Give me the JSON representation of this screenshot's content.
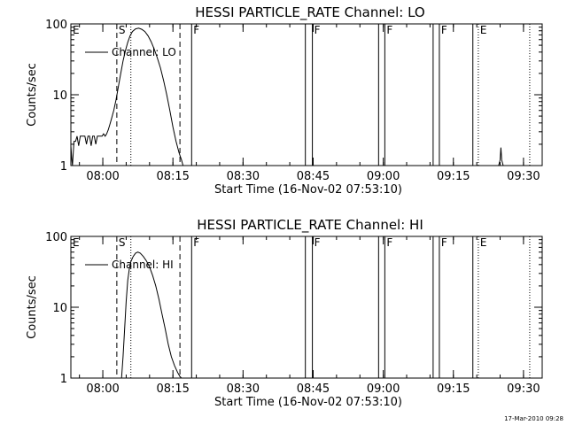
{
  "footer_timestamp": "17-Mar-2010 09:28",
  "chart_data": [
    {
      "type": "line",
      "title": "HESSI PARTICLE_RATE Channel: LO",
      "xlabel": "Start Time (16-Nov-02 07:53:10)",
      "ylabel": "Counts/sec",
      "y_scale": "log",
      "ylim": [
        1,
        100
      ],
      "y_ticks": [
        1,
        10,
        100
      ],
      "x_time_range": [
        "07:53:10",
        "09:34:00"
      ],
      "x_ticks": [
        "08:00",
        "08:15",
        "08:30",
        "08:45",
        "09:00",
        "09:15",
        "09:30"
      ],
      "legend": {
        "label": "Channel: LO",
        "position": "top-left"
      },
      "markers": [
        {
          "label": "E",
          "time": "07:53:10",
          "style": "none"
        },
        {
          "label": "S",
          "time": "08:03:00",
          "style": "dashed"
        },
        {
          "label": "",
          "time": "08:06:00",
          "style": "dotted"
        },
        {
          "label": "",
          "time": "08:16:30",
          "style": "dashed"
        },
        {
          "label": "F",
          "time": "08:19:00",
          "style": "solid"
        },
        {
          "label": "",
          "time": "08:43:20",
          "style": "solid"
        },
        {
          "label": "F",
          "time": "08:44:50",
          "style": "solid"
        },
        {
          "label": "",
          "time": "08:59:00",
          "style": "solid"
        },
        {
          "label": "F",
          "time": "09:00:20",
          "style": "solid"
        },
        {
          "label": "",
          "time": "09:10:40",
          "style": "solid"
        },
        {
          "label": "F",
          "time": "09:12:00",
          "style": "solid"
        },
        {
          "label": "",
          "time": "09:19:10",
          "style": "solid"
        },
        {
          "label": "E",
          "time": "09:20:20",
          "style": "dotted"
        },
        {
          "label": "",
          "time": "09:31:20",
          "style": "dotted"
        }
      ],
      "series": [
        {
          "x": [
            "07:53:10",
            "07:53:20",
            "07:53:30",
            "07:53:50",
            "07:54:10",
            "07:54:30",
            "07:54:50",
            "07:55:10",
            "07:55:30",
            "07:55:50",
            "07:56:10",
            "07:56:30",
            "07:56:50",
            "07:57:10",
            "07:57:30",
            "07:57:50",
            "07:58:10",
            "07:58:30",
            "07:58:50",
            "07:59:10",
            "07:59:30",
            "07:59:50",
            "08:00:10",
            "08:00:30",
            "08:00:50",
            "08:01:10",
            "08:01:30",
            "08:01:50",
            "08:02:20",
            "08:02:50",
            "08:03:20",
            "08:03:50",
            "08:04:20",
            "08:04:50",
            "08:05:20",
            "08:05:50",
            "08:06:20",
            "08:07:00",
            "08:07:40",
            "08:08:20",
            "08:09:00",
            "08:09:40",
            "08:10:20",
            "08:11:00",
            "08:11:40",
            "08:12:20",
            "08:13:00",
            "08:13:40",
            "08:14:20",
            "08:15:00",
            "08:15:40",
            "08:16:20",
            "08:16:50",
            "08:17:10",
            "08:17:20"
          ],
          "y": [
            1.9,
            1.3,
            1.0,
            2.2,
            2.2,
            2.6,
            1.9,
            2.6,
            2.6,
            2.6,
            2.6,
            2.0,
            2.6,
            2.6,
            1.9,
            2.6,
            2.6,
            2.0,
            2.6,
            2.6,
            2.6,
            2.6,
            2.8,
            2.6,
            2.8,
            3.2,
            3.8,
            4.5,
            6.0,
            8.5,
            13,
            20,
            30,
            42,
            55,
            68,
            78,
            85,
            87,
            84,
            78,
            68,
            56,
            44,
            33,
            24,
            16,
            10,
            6,
            3.5,
            2.2,
            1.5,
            1.2,
            1.0,
            1.0
          ]
        },
        {
          "x": [
            "09:24:40",
            "09:25:00",
            "09:25:10",
            "09:25:20",
            "09:25:40"
          ],
          "y": [
            1.0,
            1.2,
            1.8,
            1.2,
            1.0
          ]
        }
      ]
    },
    {
      "type": "line",
      "title": "HESSI PARTICLE_RATE Channel: HI",
      "xlabel": "Start Time (16-Nov-02 07:53:10)",
      "ylabel": "Counts/sec",
      "y_scale": "log",
      "ylim": [
        1,
        100
      ],
      "y_ticks": [
        1,
        10,
        100
      ],
      "x_time_range": [
        "07:53:10",
        "09:34:00"
      ],
      "x_ticks": [
        "08:00",
        "08:15",
        "08:30",
        "08:45",
        "09:00",
        "09:15",
        "09:30"
      ],
      "legend": {
        "label": "Channel: HI",
        "position": "top-left"
      },
      "markers": [
        {
          "label": "E",
          "time": "07:53:10",
          "style": "none"
        },
        {
          "label": "S",
          "time": "08:03:00",
          "style": "dashed"
        },
        {
          "label": "",
          "time": "08:06:00",
          "style": "dotted"
        },
        {
          "label": "",
          "time": "08:16:30",
          "style": "dashed"
        },
        {
          "label": "F",
          "time": "08:19:00",
          "style": "solid"
        },
        {
          "label": "",
          "time": "08:43:20",
          "style": "solid"
        },
        {
          "label": "F",
          "time": "08:44:50",
          "style": "solid"
        },
        {
          "label": "",
          "time": "08:59:00",
          "style": "solid"
        },
        {
          "label": "F",
          "time": "09:00:20",
          "style": "solid"
        },
        {
          "label": "",
          "time": "09:10:40",
          "style": "solid"
        },
        {
          "label": "F",
          "time": "09:12:00",
          "style": "solid"
        },
        {
          "label": "",
          "time": "09:19:10",
          "style": "solid"
        },
        {
          "label": "E",
          "time": "09:20:20",
          "style": "dotted"
        },
        {
          "label": "",
          "time": "09:31:20",
          "style": "dotted"
        }
      ],
      "series": [
        {
          "x": [
            "08:04:00",
            "08:04:20",
            "08:04:40",
            "08:05:00",
            "08:05:20",
            "08:05:40",
            "08:06:00",
            "08:06:30",
            "08:07:00",
            "08:07:30",
            "08:08:00",
            "08:08:40",
            "08:09:20",
            "08:10:00",
            "08:10:40",
            "08:11:20",
            "08:12:00",
            "08:12:40",
            "08:13:20",
            "08:14:00",
            "08:14:40",
            "08:15:20",
            "08:16:00",
            "08:16:30",
            "08:16:50"
          ],
          "y": [
            1.0,
            2.0,
            5.0,
            12,
            24,
            35,
            44,
            52,
            58,
            60,
            58,
            52,
            45,
            37,
            28,
            20,
            13,
            8,
            5,
            3,
            2,
            1.5,
            1.2,
            1.05,
            1.0
          ]
        }
      ]
    }
  ]
}
